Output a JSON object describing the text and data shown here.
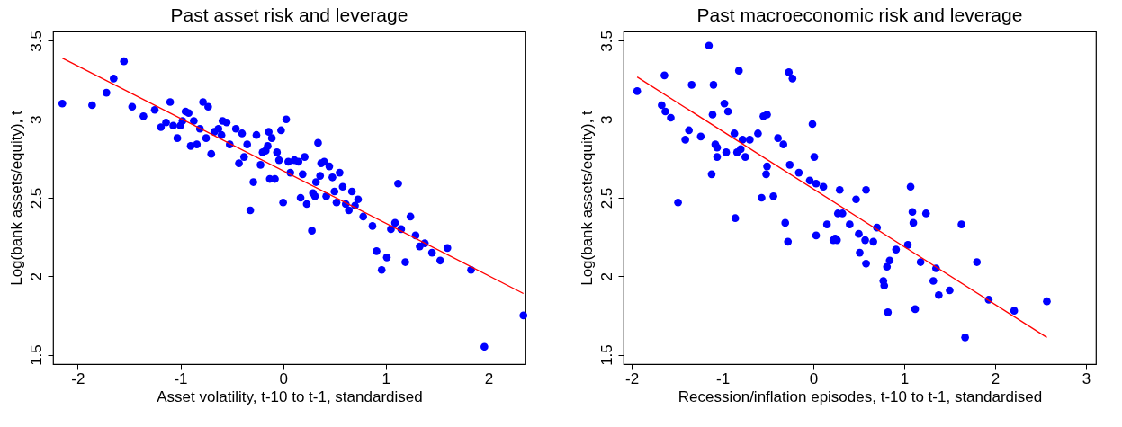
{
  "chart_data": [
    {
      "type": "scatter",
      "title": "Past asset risk and leverage",
      "xlabel": "Asset volatility, t-10 to t-1, standardised",
      "ylabel": "Log(bank assets/equity), t",
      "xlim": [
        -2.24,
        2.36
      ],
      "ylim": [
        1.44,
        3.56
      ],
      "xticks": [
        -2,
        -1,
        0,
        1,
        2
      ],
      "yticks": [
        1.5,
        2,
        2.5,
        3,
        3.5
      ],
      "grid": false,
      "series": [
        {
          "type": "scatter",
          "marker": "circle",
          "color": "#0000ff",
          "x": [
            -2.15,
            -1.86,
            -1.72,
            -1.65,
            -1.55,
            -1.47,
            -1.36,
            -1.25,
            -1.19,
            -1.14,
            -1.1,
            -1.07,
            -1.03,
            -1.0,
            -0.98,
            -0.95,
            -0.92,
            -0.9,
            -0.87,
            -0.84,
            -0.81,
            -0.78,
            -0.75,
            -0.73,
            -0.7,
            -0.67,
            -0.63,
            -0.6,
            -0.59,
            -0.55,
            -0.52,
            -0.46,
            -0.43,
            -0.4,
            -0.38,
            -0.35,
            -0.32,
            -0.29,
            -0.26,
            -0.22,
            -0.2,
            -0.17,
            -0.15,
            -0.14,
            -0.13,
            -0.11,
            -0.08,
            -0.06,
            -0.04,
            -0.02,
            0.0,
            0.03,
            0.05,
            0.07,
            0.11,
            0.15,
            0.17,
            0.19,
            0.21,
            0.23,
            0.28,
            0.29,
            0.31,
            0.32,
            0.34,
            0.36,
            0.37,
            0.4,
            0.42,
            0.45,
            0.48,
            0.5,
            0.52,
            0.55,
            0.58,
            0.61,
            0.64,
            0.67,
            0.7,
            0.73,
            0.78,
            0.87,
            0.91,
            0.96,
            1.01,
            1.05,
            1.09,
            1.12,
            1.15,
            1.19,
            1.24,
            1.29,
            1.33,
            1.38,
            1.45,
            1.53,
            1.6,
            1.83,
            1.96,
            2.34
          ],
          "values": [
            3.1,
            3.09,
            3.17,
            3.26,
            3.37,
            3.08,
            3.02,
            3.06,
            2.95,
            2.98,
            3.11,
            2.96,
            2.88,
            2.96,
            2.99,
            3.05,
            3.04,
            2.83,
            2.99,
            2.84,
            2.94,
            3.11,
            2.88,
            3.08,
            2.78,
            2.92,
            2.94,
            2.9,
            2.99,
            2.98,
            2.84,
            2.94,
            2.72,
            2.91,
            2.76,
            2.84,
            2.42,
            2.6,
            2.9,
            2.71,
            2.79,
            2.8,
            2.83,
            2.92,
            2.62,
            2.88,
            2.62,
            2.79,
            2.74,
            2.93,
            2.47,
            3.0,
            2.73,
            2.66,
            2.74,
            2.73,
            2.5,
            2.65,
            2.76,
            2.46,
            2.29,
            2.53,
            2.51,
            2.6,
            2.85,
            2.64,
            2.72,
            2.73,
            2.51,
            2.7,
            2.63,
            2.54,
            2.47,
            2.66,
            2.57,
            2.46,
            2.42,
            2.54,
            2.45,
            2.49,
            2.38,
            2.32,
            2.16,
            2.04,
            2.12,
            2.3,
            2.34,
            2.59,
            2.3,
            2.09,
            2.38,
            2.26,
            2.19,
            2.21,
            2.15,
            2.1,
            2.18,
            2.04,
            1.55,
            1.75
          ]
        },
        {
          "type": "line",
          "line_style": "solid",
          "color": "#ff0000",
          "x": [
            -2.15,
            2.34
          ],
          "values": [
            3.39,
            1.89
          ]
        }
      ]
    },
    {
      "type": "scatter",
      "title": "Past macroeconomic risk and leverage",
      "xlabel": "Recession/inflation episodes, t-10 to t-1, standardised",
      "ylabel": "Log(bank assets/equity), t",
      "xlim": [
        -2.09,
        3.11
      ],
      "ylim": [
        1.44,
        3.56
      ],
      "xticks": [
        -2,
        -1,
        0,
        1,
        2,
        3
      ],
      "yticks": [
        1.5,
        2,
        2.5,
        3,
        3.5
      ],
      "grid": false,
      "series": [
        {
          "type": "scatter",
          "marker": "circle",
          "color": "#0000ff",
          "x": [
            -1.94,
            -1.67,
            -1.64,
            -1.63,
            -1.57,
            -1.49,
            -1.41,
            -1.37,
            -1.34,
            -1.24,
            -1.15,
            -1.12,
            -1.11,
            -1.1,
            -1.08,
            -1.06,
            -1.06,
            -0.98,
            -0.96,
            -0.94,
            -0.87,
            -0.86,
            -0.84,
            -0.82,
            -0.8,
            -0.78,
            -0.75,
            -0.7,
            -0.61,
            -0.57,
            -0.55,
            -0.52,
            -0.51,
            -0.51,
            -0.44,
            -0.39,
            -0.33,
            -0.31,
            -0.28,
            -0.27,
            -0.26,
            -0.23,
            -0.16,
            -0.04,
            -0.01,
            0.01,
            0.03,
            0.03,
            0.11,
            0.15,
            0.22,
            0.24,
            0.26,
            0.27,
            0.29,
            0.32,
            0.4,
            0.47,
            0.5,
            0.51,
            0.58,
            0.57,
            0.58,
            0.66,
            0.7,
            0.77,
            0.78,
            0.81,
            0.82,
            0.84,
            0.91,
            1.04,
            1.07,
            1.09,
            1.1,
            1.12,
            1.18,
            1.24,
            1.32,
            1.35,
            1.38,
            1.5,
            1.63,
            1.67,
            1.8,
            1.93,
            2.21,
            2.57
          ],
          "values": [
            3.18,
            3.09,
            3.28,
            3.05,
            3.01,
            2.47,
            2.87,
            2.93,
            3.22,
            2.89,
            3.47,
            2.65,
            3.03,
            3.22,
            2.84,
            2.82,
            2.76,
            3.1,
            2.79,
            3.05,
            2.91,
            2.37,
            2.79,
            3.31,
            2.81,
            2.87,
            2.76,
            2.87,
            2.91,
            2.5,
            3.02,
            2.65,
            3.03,
            2.7,
            2.51,
            2.88,
            2.84,
            2.34,
            2.22,
            3.3,
            2.71,
            3.26,
            2.66,
            2.61,
            2.97,
            2.76,
            2.26,
            2.59,
            2.57,
            2.33,
            2.23,
            2.24,
            2.23,
            2.4,
            2.55,
            2.4,
            2.33,
            2.49,
            2.27,
            2.15,
            2.55,
            2.23,
            2.08,
            2.22,
            2.31,
            1.97,
            1.94,
            2.06,
            1.77,
            2.1,
            2.17,
            2.2,
            2.57,
            2.41,
            2.34,
            1.79,
            2.09,
            2.4,
            1.97,
            2.05,
            1.88,
            1.91,
            2.33,
            1.61,
            2.09,
            1.85,
            1.78,
            1.84
          ]
        },
        {
          "type": "line",
          "line_style": "solid",
          "color": "#ff0000",
          "x": [
            -1.94,
            2.57
          ],
          "values": [
            3.27,
            1.61
          ]
        }
      ]
    }
  ]
}
